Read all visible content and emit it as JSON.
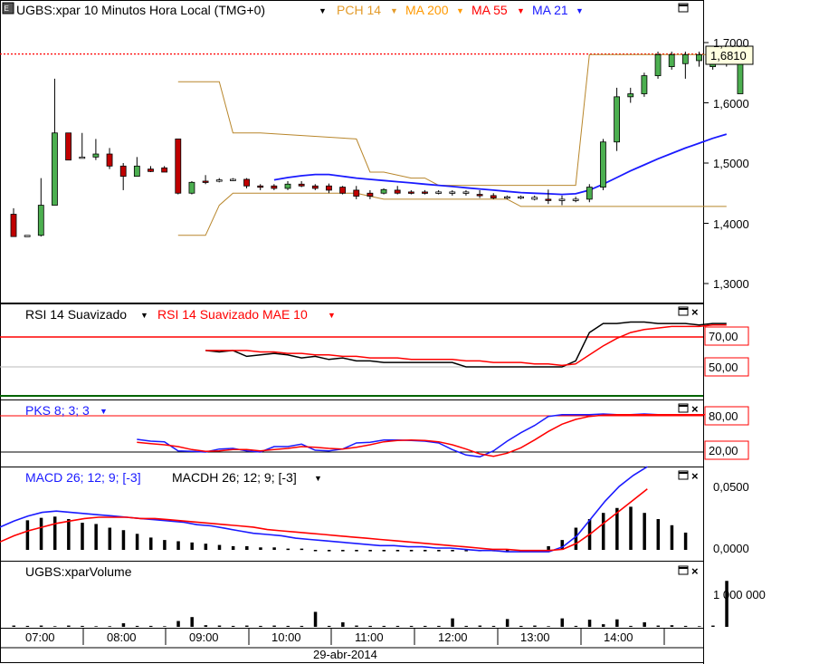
{
  "colors": {
    "candle_up": "#4caf50",
    "candle_down": "#c00000",
    "pch": "#b8862b",
    "ma21": "#1a1aff",
    "ma55": "#ff0000",
    "ma200": "#ff9900",
    "rsi": "#000000",
    "rsi_signal": "#ff0000",
    "pks_k": "#1a1aff",
    "pks_d": "#ff0000",
    "macd": "#1a1aff",
    "macd_signal": "#ff0000",
    "hist": "#000000",
    "volume": "#000000",
    "last_price_line": "#ff0000",
    "level_high": "#ff0000",
    "level_low": "#006400"
  },
  "price_panel": {
    "title": "UGBS:xpar 10 Minutos Hora Local (TMG+0)",
    "indicators": [
      "PCH 14",
      "MA 200",
      "MA 55",
      "MA 21"
    ],
    "last_price_label": "1,6810",
    "y_ticks": [
      "1,7000",
      "1,6000",
      "1,5000",
      "1,4000",
      "1,3000"
    ]
  },
  "rsi_panel": {
    "title": "RSI 14 Suavizado",
    "signal_title": "RSI 14 Suavizado MAE 10",
    "levels": [
      "70,00",
      "50,00"
    ]
  },
  "pks_panel": {
    "title": "PKS 8; 3; 3",
    "levels": [
      "80,00",
      "20,00"
    ]
  },
  "macd_panel": {
    "title": "MACD 26; 12; 9; [-3]",
    "hist_title": "MACDH 26; 12; 9; [-3]",
    "y_ticks": [
      "0,0500",
      "0,0000"
    ]
  },
  "volume_panel": {
    "title": "UGBS:xparVolume",
    "y_ticks": [
      "1 000 000"
    ]
  },
  "x_axis": {
    "time_labels": [
      "07:00",
      "08:00",
      "09:00",
      "10:00",
      "11:00",
      "12:00",
      "13:00",
      "14:00"
    ],
    "date_label": "29-abr-2014"
  },
  "chart_data": [
    {
      "type": "candlestick",
      "title": "UGBS:xpar 10 Minutos Hora Local (TMG+0)",
      "ylim": [
        1.24,
        1.74
      ],
      "candles": [
        {
          "o": 1.415,
          "h": 1.425,
          "l": 1.378,
          "c": 1.378
        },
        {
          "o": 1.378,
          "h": 1.38,
          "l": 1.378,
          "c": 1.38
        },
        {
          "o": 1.38,
          "h": 1.475,
          "l": 1.378,
          "c": 1.43
        },
        {
          "o": 1.43,
          "h": 1.64,
          "l": 1.43,
          "c": 1.55
        },
        {
          "o": 1.55,
          "h": 1.55,
          "l": 1.505,
          "c": 1.505
        },
        {
          "o": 1.51,
          "h": 1.55,
          "l": 1.508,
          "c": 1.51
        },
        {
          "o": 1.51,
          "h": 1.54,
          "l": 1.505,
          "c": 1.515
        },
        {
          "o": 1.515,
          "h": 1.525,
          "l": 1.49,
          "c": 1.495
        },
        {
          "o": 1.495,
          "h": 1.5,
          "l": 1.455,
          "c": 1.478
        },
        {
          "o": 1.478,
          "h": 1.51,
          "l": 1.478,
          "c": 1.495
        },
        {
          "o": 1.49,
          "h": 1.495,
          "l": 1.485,
          "c": 1.486
        },
        {
          "o": 1.492,
          "h": 1.495,
          "l": 1.485,
          "c": 1.485
        },
        {
          "o": 1.54,
          "h": 1.54,
          "l": 1.448,
          "c": 1.45
        },
        {
          "o": 1.45,
          "h": 1.47,
          "l": 1.448,
          "c": 1.468
        },
        {
          "o": 1.47,
          "h": 1.48,
          "l": 1.465,
          "c": 1.468
        },
        {
          "o": 1.47,
          "h": 1.475,
          "l": 1.468,
          "c": 1.472
        },
        {
          "o": 1.472,
          "h": 1.475,
          "l": 1.47,
          "c": 1.473
        },
        {
          "o": 1.473,
          "h": 1.475,
          "l": 1.458,
          "c": 1.462
        },
        {
          "o": 1.462,
          "h": 1.465,
          "l": 1.455,
          "c": 1.46
        },
        {
          "o": 1.462,
          "h": 1.465,
          "l": 1.455,
          "c": 1.458
        },
        {
          "o": 1.458,
          "h": 1.47,
          "l": 1.455,
          "c": 1.465
        },
        {
          "o": 1.465,
          "h": 1.47,
          "l": 1.46,
          "c": 1.462
        },
        {
          "o": 1.462,
          "h": 1.465,
          "l": 1.455,
          "c": 1.458
        },
        {
          "o": 1.462,
          "h": 1.466,
          "l": 1.45,
          "c": 1.455
        },
        {
          "o": 1.46,
          "h": 1.462,
          "l": 1.448,
          "c": 1.45
        },
        {
          "o": 1.455,
          "h": 1.462,
          "l": 1.44,
          "c": 1.445
        },
        {
          "o": 1.45,
          "h": 1.455,
          "l": 1.44,
          "c": 1.445
        },
        {
          "o": 1.45,
          "h": 1.458,
          "l": 1.448,
          "c": 1.456
        },
        {
          "o": 1.455,
          "h": 1.462,
          "l": 1.448,
          "c": 1.45
        },
        {
          "o": 1.452,
          "h": 1.455,
          "l": 1.448,
          "c": 1.45
        },
        {
          "o": 1.452,
          "h": 1.455,
          "l": 1.448,
          "c": 1.45
        },
        {
          "o": 1.45,
          "h": 1.455,
          "l": 1.448,
          "c": 1.452
        },
        {
          "o": 1.45,
          "h": 1.455,
          "l": 1.446,
          "c": 1.452
        },
        {
          "o": 1.45,
          "h": 1.455,
          "l": 1.446,
          "c": 1.452
        },
        {
          "o": 1.448,
          "h": 1.455,
          "l": 1.442,
          "c": 1.446
        },
        {
          "o": 1.446,
          "h": 1.45,
          "l": 1.44,
          "c": 1.442
        },
        {
          "o": 1.442,
          "h": 1.446,
          "l": 1.44,
          "c": 1.444
        },
        {
          "o": 1.442,
          "h": 1.446,
          "l": 1.44,
          "c": 1.444
        },
        {
          "o": 1.44,
          "h": 1.446,
          "l": 1.438,
          "c": 1.443
        },
        {
          "o": 1.44,
          "h": 1.456,
          "l": 1.432,
          "c": 1.438
        },
        {
          "o": 1.438,
          "h": 1.446,
          "l": 1.43,
          "c": 1.44
        },
        {
          "o": 1.438,
          "h": 1.444,
          "l": 1.435,
          "c": 1.44
        },
        {
          "o": 1.44,
          "h": 1.465,
          "l": 1.435,
          "c": 1.46
        },
        {
          "o": 1.46,
          "h": 1.54,
          "l": 1.455,
          "c": 1.535
        },
        {
          "o": 1.535,
          "h": 1.625,
          "l": 1.52,
          "c": 1.61
        },
        {
          "o": 1.61,
          "h": 1.625,
          "l": 1.6,
          "c": 1.615
        },
        {
          "o": 1.615,
          "h": 1.65,
          "l": 1.61,
          "c": 1.645
        },
        {
          "o": 1.645,
          "h": 1.685,
          "l": 1.64,
          "c": 1.68
        },
        {
          "o": 1.66,
          "h": 1.685,
          "l": 1.655,
          "c": 1.68
        },
        {
          "o": 1.665,
          "h": 1.685,
          "l": 1.64,
          "c": 1.68
        },
        {
          "o": 1.67,
          "h": 1.685,
          "l": 1.66,
          "c": 1.68
        },
        {
          "o": 1.66,
          "h": 1.685,
          "l": 1.655,
          "c": 1.68
        },
        {
          "o": 1.67,
          "h": 1.685,
          "l": 1.66,
          "c": 1.68
        },
        {
          "o": 1.615,
          "h": 1.685,
          "l": 1.615,
          "c": 1.681
        }
      ]
    },
    {
      "type": "line",
      "title": "PCH 14",
      "upper": {
        "x": [
          12,
          13,
          15,
          16,
          18,
          25,
          26,
          27,
          29,
          30,
          31,
          41,
          42,
          52
        ],
        "values": [
          1.635,
          1.635,
          1.635,
          1.55,
          1.55,
          1.54,
          1.485,
          1.485,
          1.475,
          1.475,
          1.463,
          1.463,
          1.68,
          1.68
        ]
      },
      "lower": {
        "x": [
          12,
          14,
          15,
          16,
          18,
          25,
          26,
          27,
          35,
          36,
          37,
          41,
          42,
          52
        ],
        "values": [
          1.38,
          1.38,
          1.43,
          1.45,
          1.45,
          1.45,
          1.445,
          1.44,
          1.44,
          1.44,
          1.428,
          1.428,
          1.428,
          1.428
        ]
      }
    },
    {
      "type": "line",
      "title": "MA 21",
      "x": [
        19,
        20,
        21,
        22,
        23,
        24,
        25,
        26,
        27,
        28,
        29,
        30,
        31,
        32,
        33,
        34,
        35,
        36,
        37,
        38,
        39,
        40,
        41,
        42,
        43,
        44,
        45,
        46,
        47,
        48,
        49,
        50,
        51,
        52
      ],
      "values": [
        1.472,
        1.476,
        1.479,
        1.481,
        1.481,
        1.478,
        1.475,
        1.473,
        1.471,
        1.469,
        1.467,
        1.465,
        1.463,
        1.461,
        1.459,
        1.457,
        1.455,
        1.453,
        1.451,
        1.45,
        1.449,
        1.448,
        1.449,
        1.455,
        1.465,
        1.476,
        1.487,
        1.497,
        1.507,
        1.516,
        1.525,
        1.533,
        1.541,
        1.548
      ]
    },
    {
      "type": "line",
      "title": "RSI 14 Suavizado",
      "ylim": [
        20,
        90
      ],
      "x": [
        14,
        15,
        16,
        17,
        18,
        19,
        20,
        21,
        22,
        23,
        24,
        25,
        26,
        27,
        28,
        29,
        30,
        31,
        32,
        33,
        34,
        35,
        36,
        37,
        38,
        39,
        40,
        41,
        42,
        43,
        44,
        45,
        46,
        47,
        48,
        49,
        50,
        51,
        52
      ],
      "rsi": [
        61,
        60,
        61,
        57,
        58,
        59,
        58,
        56,
        57,
        55,
        56,
        54,
        54,
        53,
        53,
        53,
        53,
        53,
        53,
        50,
        50,
        50,
        50,
        50,
        50,
        50,
        50,
        54,
        73,
        79,
        79,
        80,
        80,
        79,
        79,
        79,
        78,
        79,
        79
      ],
      "signal": [
        61,
        61,
        61,
        61,
        60,
        60,
        59,
        59,
        58,
        58,
        57,
        57,
        56,
        56,
        56,
        55,
        55,
        55,
        55,
        54,
        54,
        53,
        53,
        53,
        52,
        52,
        51,
        52,
        58,
        64,
        69,
        73,
        75,
        76,
        77,
        77,
        77,
        78,
        78
      ],
      "levels": [
        70,
        50
      ]
    },
    {
      "type": "line",
      "title": "PKS 8; 3; 3",
      "ylim": [
        0,
        100
      ],
      "x": [
        9,
        10,
        11,
        12,
        13,
        14,
        15,
        16,
        17,
        18,
        19,
        20,
        21,
        22,
        23,
        24,
        25,
        26,
        27,
        28,
        29,
        30,
        31,
        32,
        33,
        34,
        35,
        36,
        37,
        38,
        39,
        40,
        41,
        42,
        43,
        44,
        45,
        46,
        47,
        48,
        49,
        50,
        51,
        52
      ],
      "k": [
        41,
        38,
        37,
        22,
        21,
        20,
        25,
        26,
        22,
        20,
        29,
        29,
        33,
        23,
        22,
        25,
        35,
        36,
        40,
        40,
        39,
        38,
        35,
        24,
        15,
        12,
        22,
        38,
        52,
        64,
        79,
        82,
        82,
        82,
        83,
        82,
        82,
        83,
        82,
        82,
        82,
        82,
        82,
        82
      ],
      "d": [
        36,
        34,
        32,
        29,
        24,
        21,
        22,
        24,
        24,
        22,
        24,
        26,
        29,
        28,
        26,
        25,
        28,
        32,
        37,
        39,
        40,
        39,
        37,
        32,
        25,
        17,
        13,
        18,
        27,
        40,
        54,
        66,
        74,
        79,
        81,
        82,
        82,
        82,
        82,
        82,
        82,
        82,
        82,
        82
      ],
      "levels": [
        80,
        20
      ]
    },
    {
      "type": "line",
      "title": "MACD 26; 12; 9; [-3]",
      "ylim": [
        -0.012,
        0.072
      ],
      "x": [
        0,
        1,
        2,
        3,
        4,
        5,
        6,
        7,
        8,
        9,
        10,
        11,
        12,
        13,
        14,
        15,
        16,
        17,
        18,
        19,
        20,
        21,
        22,
        23,
        24,
        25,
        26,
        27,
        28,
        29,
        30,
        31,
        32,
        33,
        34,
        35,
        36,
        37,
        38,
        39,
        40,
        41,
        42,
        43,
        44,
        45,
        46
      ],
      "macd": [
        0.017,
        0.022,
        0.026,
        0.029,
        0.03,
        0.029,
        0.028,
        0.027,
        0.026,
        0.025,
        0.024,
        0.023,
        0.022,
        0.021,
        0.019,
        0.018,
        0.016,
        0.014,
        0.012,
        0.011,
        0.01,
        0.008,
        0.007,
        0.006,
        0.005,
        0.004,
        0.003,
        0.002,
        0.002,
        0.001,
        0.001,
        0.0,
        0.0,
        -0.001,
        -0.002,
        -0.002,
        -0.003,
        -0.003,
        -0.003,
        -0.003,
        0.001,
        0.01,
        0.024,
        0.038,
        0.05,
        0.059,
        0.066
      ],
      "signal": [
        0.005,
        0.01,
        0.014,
        0.017,
        0.02,
        0.022,
        0.024,
        0.025,
        0.025,
        0.025,
        0.024,
        0.024,
        0.023,
        0.022,
        0.021,
        0.02,
        0.019,
        0.018,
        0.017,
        0.015,
        0.014,
        0.013,
        0.012,
        0.011,
        0.01,
        0.009,
        0.008,
        0.007,
        0.006,
        0.005,
        0.004,
        0.003,
        0.002,
        0.001,
        0.0,
        -0.001,
        -0.001,
        -0.002,
        -0.002,
        -0.002,
        -0.001,
        0.004,
        0.012,
        0.021,
        0.03,
        0.039,
        0.048
      ],
      "hist": [
        0.024,
        0.026,
        0.027,
        0.025,
        0.022,
        0.021,
        0.018,
        0.016,
        0.013,
        0.01,
        0.008,
        0.007,
        0.006,
        0.005,
        0.004,
        0.003,
        0.003,
        0.002,
        0.002,
        0.001,
        0.001,
        0.0,
        -0.001,
        -0.001,
        -0.001,
        -0.002,
        -0.002,
        -0.002,
        -0.002,
        -0.002,
        -0.003,
        -0.003,
        -0.003,
        -0.003,
        -0.003,
        -0.003,
        -0.002,
        -0.002,
        0.003,
        0.008,
        0.018,
        0.025,
        0.03,
        0.034,
        0.035,
        0.03,
        0.025,
        0.02,
        0.014
      ],
      "hist_x": [
        1,
        2,
        3,
        4,
        5,
        6,
        7,
        8,
        9,
        10,
        11,
        12,
        13,
        14,
        15,
        16,
        17,
        18,
        19,
        20,
        21,
        22,
        23,
        24,
        25,
        26,
        27,
        28,
        29,
        30,
        31,
        32,
        33,
        34,
        35,
        36,
        37,
        38,
        39,
        40,
        41,
        42,
        43,
        44,
        45,
        46,
        47,
        48,
        49
      ]
    },
    {
      "type": "bar",
      "title": "UGBS:xparVolume",
      "ylim": [
        0,
        1500000
      ],
      "x": [
        0,
        1,
        2,
        3,
        4,
        5,
        6,
        7,
        8,
        9,
        10,
        11,
        12,
        13,
        14,
        15,
        16,
        17,
        18,
        19,
        20,
        21,
        22,
        23,
        24,
        25,
        26,
        27,
        28,
        29,
        30,
        31,
        32,
        33,
        34,
        35,
        36,
        37,
        38,
        39,
        40,
        41,
        42,
        43,
        44,
        45,
        46,
        47,
        48,
        49,
        50,
        51,
        52
      ],
      "values": [
        40000,
        30000,
        40000,
        20000,
        40000,
        30000,
        20000,
        20000,
        110000,
        30000,
        30000,
        20000,
        180000,
        300000,
        50000,
        40000,
        30000,
        40000,
        30000,
        40000,
        30000,
        30000,
        460000,
        30000,
        140000,
        40000,
        30000,
        30000,
        30000,
        30000,
        30000,
        30000,
        260000,
        30000,
        40000,
        30000,
        240000,
        30000,
        40000,
        20000,
        260000,
        30000,
        220000,
        80000,
        230000,
        30000,
        140000,
        40000,
        50000,
        30000,
        20000,
        40000,
        1410000
      ]
    }
  ]
}
